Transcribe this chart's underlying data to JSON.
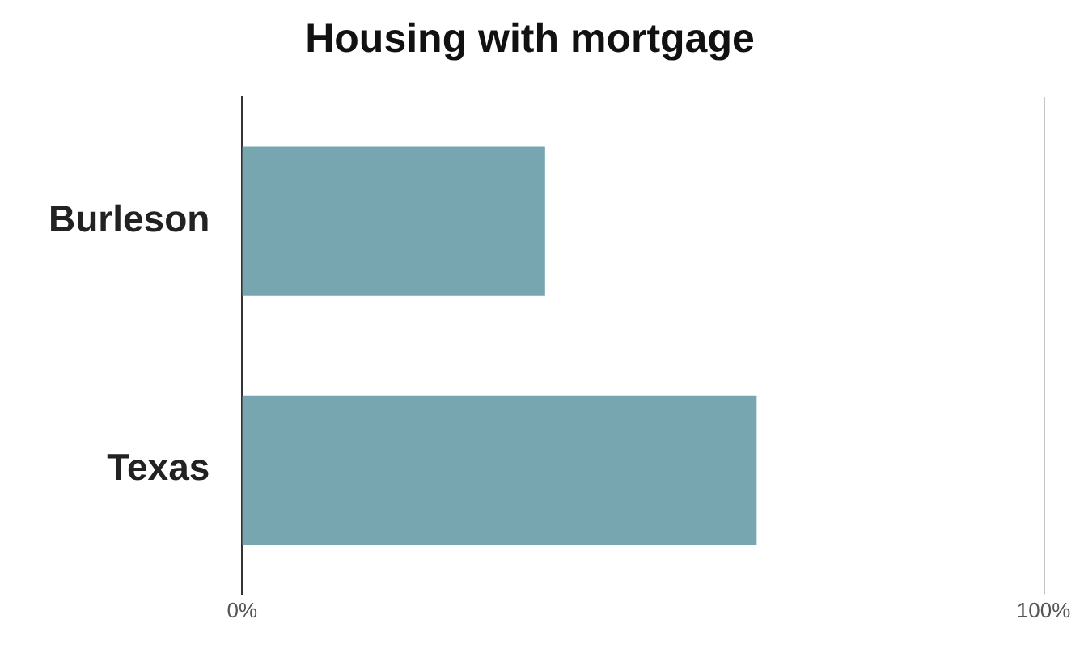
{
  "chart_data": {
    "type": "bar",
    "orientation": "horizontal",
    "title": "Housing with mortgage",
    "categories": [
      "Burleson",
      "Texas"
    ],
    "values": [
      37.8,
      64.2
    ],
    "color": "#78a6b0",
    "xlim": [
      0,
      100
    ],
    "xticks": [
      {
        "value": 0,
        "label": "0%"
      },
      {
        "value": 100,
        "label": "100%"
      }
    ],
    "legend": false
  }
}
